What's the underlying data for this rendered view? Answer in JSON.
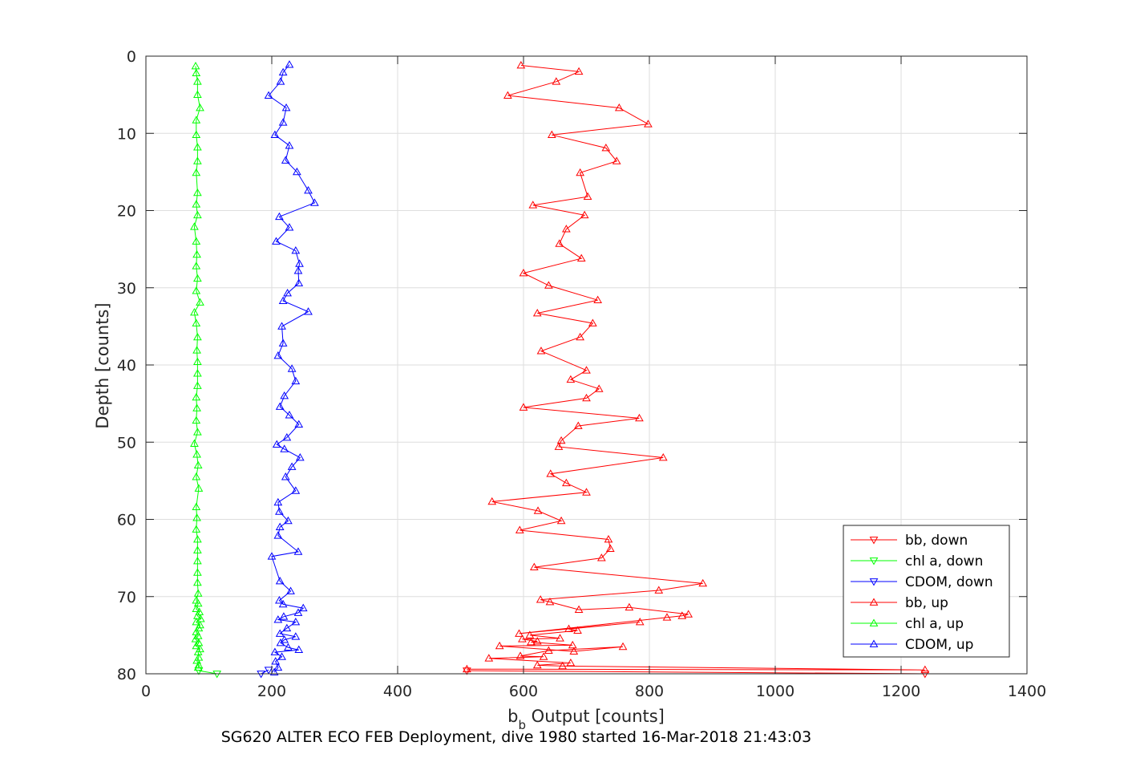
{
  "chart_data": {
    "type": "line",
    "xlabel_main": "b",
    "xlabel_sub": "b",
    "xlabel_rest": " Output [counts]",
    "ylabel": "Depth [counts]",
    "caption": "SG620 ALTER ECO FEB Deployment, dive 1980 started 16-Mar-2018 21:43:03",
    "xlim": [
      0,
      1400
    ],
    "ylim": [
      0,
      80
    ],
    "y_reversed": true,
    "grid": true,
    "legend_position": "bottom-right",
    "xticks": [
      "0",
      "200",
      "400",
      "600",
      "800",
      "1000",
      "1200",
      "1400"
    ],
    "yticks": [
      "0",
      "10",
      "20",
      "30",
      "40",
      "50",
      "60",
      "70",
      "80"
    ],
    "series": [
      {
        "name": "bb, down",
        "color": "#ff0000",
        "marker": "triangle-down",
        "points": [
          [
            1238,
            80.0
          ],
          [
            510,
            79.6
          ]
        ]
      },
      {
        "name": "chl a, down",
        "color": "#00ff00",
        "marker": "triangle-down",
        "points": [
          [
            113,
            80.0
          ],
          [
            84,
            79.6
          ]
        ]
      },
      {
        "name": "CDOM, down",
        "color": "#0000ff",
        "marker": "triangle-down",
        "points": [
          [
            183,
            80.0
          ],
          [
            195,
            79.5
          ]
        ]
      },
      {
        "name": "bb, up",
        "color": "#ff0000",
        "marker": "triangle-up",
        "points": [
          [
            510,
            79.4
          ],
          [
            1238,
            79.5
          ],
          [
            662,
            79.0
          ],
          [
            622,
            78.9
          ],
          [
            675,
            78.6
          ],
          [
            545,
            78.0
          ],
          [
            632,
            77.8
          ],
          [
            595,
            77.7
          ],
          [
            640,
            77.0
          ],
          [
            758,
            76.5
          ],
          [
            680,
            77.1
          ],
          [
            562,
            76.4
          ],
          [
            678,
            76.3
          ],
          [
            612,
            75.9
          ],
          [
            622,
            75.8
          ],
          [
            598,
            75.5
          ],
          [
            658,
            75.4
          ],
          [
            610,
            75.0
          ],
          [
            686,
            74.4
          ],
          [
            672,
            74.2
          ],
          [
            785,
            73.3
          ],
          [
            593,
            74.8
          ],
          [
            828,
            72.7
          ],
          [
            852,
            72.5
          ],
          [
            862,
            72.3
          ],
          [
            768,
            71.4
          ],
          [
            688,
            71.7
          ],
          [
            642,
            70.7
          ],
          [
            627,
            70.4
          ],
          [
            815,
            69.2
          ],
          [
            885,
            68.3
          ],
          [
            617,
            66.2
          ],
          [
            724,
            65.0
          ],
          [
            738,
            63.8
          ],
          [
            735,
            62.6
          ],
          [
            594,
            61.4
          ],
          [
            660,
            60.2
          ],
          [
            623,
            58.9
          ],
          [
            550,
            57.7
          ],
          [
            700,
            56.5
          ],
          [
            668,
            55.3
          ],
          [
            643,
            54.1
          ],
          [
            822,
            52.0
          ],
          [
            656,
            50.6
          ],
          [
            660,
            49.8
          ],
          [
            687,
            47.9
          ],
          [
            784,
            46.9
          ],
          [
            600,
            45.5
          ],
          [
            700,
            44.3
          ],
          [
            720,
            43.1
          ],
          [
            675,
            41.9
          ],
          [
            700,
            40.7
          ],
          [
            628,
            38.2
          ],
          [
            690,
            36.4
          ],
          [
            710,
            34.6
          ],
          [
            622,
            33.3
          ],
          [
            718,
            31.6
          ],
          [
            640,
            29.7
          ],
          [
            600,
            28.1
          ],
          [
            692,
            26.2
          ],
          [
            657,
            24.3
          ],
          [
            668,
            22.4
          ],
          [
            697,
            20.6
          ],
          [
            615,
            19.3
          ],
          [
            702,
            18.2
          ],
          [
            690,
            15.1
          ],
          [
            748,
            13.6
          ],
          [
            731,
            11.9
          ],
          [
            645,
            10.2
          ],
          [
            798,
            8.8
          ],
          [
            752,
            6.7
          ],
          [
            575,
            5.1
          ],
          [
            652,
            3.3
          ],
          [
            688,
            2.0
          ],
          [
            596,
            1.2
          ]
        ]
      },
      {
        "name": "chl a, up",
        "color": "#00ff00",
        "marker": "triangle-up",
        "points": [
          [
            83,
            79.2
          ],
          [
            84,
            78.9
          ],
          [
            81,
            78.3
          ],
          [
            84,
            77.9
          ],
          [
            83,
            77.2
          ],
          [
            86,
            76.8
          ],
          [
            80,
            76.4
          ],
          [
            84,
            76.0
          ],
          [
            79,
            75.5
          ],
          [
            83,
            75.1
          ],
          [
            80,
            74.6
          ],
          [
            84,
            74.1
          ],
          [
            86,
            73.7
          ],
          [
            80,
            73.3
          ],
          [
            87,
            72.9
          ],
          [
            82,
            72.5
          ],
          [
            85,
            72.0
          ],
          [
            80,
            71.6
          ],
          [
            83,
            70.9
          ],
          [
            80,
            70.5
          ],
          [
            83,
            69.6
          ],
          [
            82,
            68.2
          ],
          [
            82,
            66.9
          ],
          [
            82,
            65.4
          ],
          [
            82,
            64.0
          ],
          [
            82,
            62.6
          ],
          [
            80,
            61.3
          ],
          [
            81,
            59.8
          ],
          [
            80,
            58.4
          ],
          [
            84,
            56.0
          ],
          [
            80,
            54.5
          ],
          [
            83,
            53.0
          ],
          [
            81,
            51.6
          ],
          [
            77,
            50.2
          ],
          [
            82,
            48.7
          ],
          [
            80,
            47.2
          ],
          [
            81,
            45.6
          ],
          [
            80,
            44.2
          ],
          [
            82,
            42.7
          ],
          [
            82,
            41.1
          ],
          [
            82,
            39.6
          ],
          [
            81,
            38.1
          ],
          [
            82,
            36.4
          ],
          [
            80,
            34.6
          ],
          [
            77,
            33.2
          ],
          [
            86,
            31.9
          ],
          [
            80,
            30.4
          ],
          [
            82,
            28.8
          ],
          [
            80,
            27.2
          ],
          [
            81,
            25.7
          ],
          [
            80,
            24.0
          ],
          [
            77,
            22.1
          ],
          [
            82,
            20.6
          ],
          [
            80,
            19.2
          ],
          [
            82,
            17.7
          ],
          [
            80,
            15.1
          ],
          [
            82,
            13.6
          ],
          [
            82,
            11.8
          ],
          [
            80,
            10.2
          ],
          [
            80,
            8.3
          ],
          [
            86,
            6.7
          ],
          [
            82,
            5.0
          ],
          [
            82,
            3.3
          ],
          [
            80,
            2.2
          ],
          [
            79,
            1.3
          ]
        ]
      },
      {
        "name": "CDOM, up",
        "color": "#0000ff",
        "marker": "triangle-up",
        "points": [
          [
            204,
            79.8
          ],
          [
            210,
            79.2
          ],
          [
            206,
            78.4
          ],
          [
            216,
            77.8
          ],
          [
            205,
            77.2
          ],
          [
            243,
            76.9
          ],
          [
            226,
            76.6
          ],
          [
            214,
            76.0
          ],
          [
            220,
            75.6
          ],
          [
            238,
            75.2
          ],
          [
            213,
            74.8
          ],
          [
            224,
            74.1
          ],
          [
            238,
            73.3
          ],
          [
            210,
            73.0
          ],
          [
            219,
            72.6
          ],
          [
            242,
            72.1
          ],
          [
            250,
            71.5
          ],
          [
            218,
            71.0
          ],
          [
            212,
            70.5
          ],
          [
            230,
            69.3
          ],
          [
            213,
            68.0
          ],
          [
            200,
            64.8
          ],
          [
            242,
            64.2
          ],
          [
            210,
            62.1
          ],
          [
            213,
            61.0
          ],
          [
            226,
            60.2
          ],
          [
            212,
            59.0
          ],
          [
            210,
            57.8
          ],
          [
            238,
            56.3
          ],
          [
            222,
            54.5
          ],
          [
            232,
            53.2
          ],
          [
            245,
            52.0
          ],
          [
            220,
            50.9
          ],
          [
            208,
            50.3
          ],
          [
            224,
            49.4
          ],
          [
            243,
            47.7
          ],
          [
            228,
            46.5
          ],
          [
            213,
            45.4
          ],
          [
            220,
            44.0
          ],
          [
            238,
            42.1
          ],
          [
            232,
            40.5
          ],
          [
            210,
            38.8
          ],
          [
            218,
            37.2
          ],
          [
            216,
            35.0
          ],
          [
            258,
            33.1
          ],
          [
            218,
            31.7
          ],
          [
            225,
            30.7
          ],
          [
            243,
            29.4
          ],
          [
            242,
            27.8
          ],
          [
            244,
            26.9
          ],
          [
            238,
            25.2
          ],
          [
            207,
            24.0
          ],
          [
            228,
            22.2
          ],
          [
            212,
            20.8
          ],
          [
            268,
            19.0
          ],
          [
            258,
            17.4
          ],
          [
            240,
            15.0
          ],
          [
            222,
            13.5
          ],
          [
            228,
            11.6
          ],
          [
            205,
            10.2
          ],
          [
            218,
            8.6
          ],
          [
            223,
            6.7
          ],
          [
            195,
            5.1
          ],
          [
            214,
            3.3
          ],
          [
            218,
            2.1
          ],
          [
            228,
            1.1
          ]
        ]
      }
    ]
  }
}
